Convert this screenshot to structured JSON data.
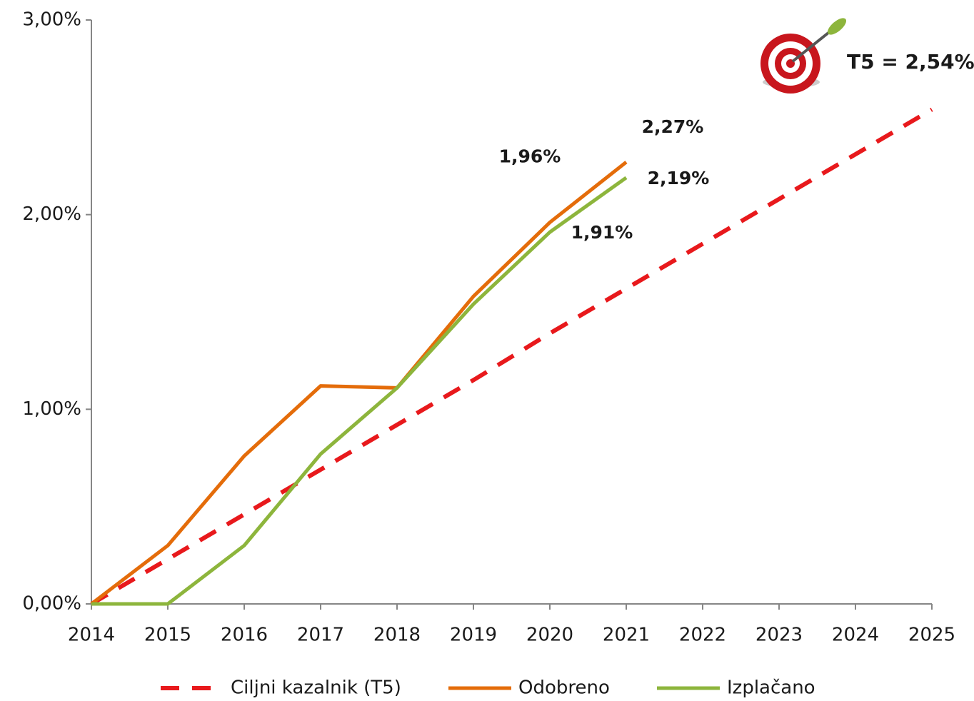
{
  "chart_data": {
    "type": "line",
    "annotation": "T5 = 2,54%",
    "x": [
      2014,
      2015,
      2016,
      2017,
      2018,
      2019,
      2020,
      2021,
      2022,
      2023,
      2024,
      2025
    ],
    "xlim": [
      2014,
      2025
    ],
    "xticks": [
      2014,
      2015,
      2016,
      2017,
      2018,
      2019,
      2020,
      2021,
      2022,
      2023,
      2024,
      2025
    ],
    "ylim": [
      0,
      3
    ],
    "yticks": [
      {
        "value": 0,
        "label": "0,00%"
      },
      {
        "value": 1,
        "label": "1,00%"
      },
      {
        "value": 2,
        "label": "2,00%"
      },
      {
        "value": 3,
        "label": "3,00%"
      }
    ],
    "legend": "bottom",
    "series": [
      {
        "name": "Ciljni kazalnik (T5)",
        "color": "#e8191c",
        "dashed": true,
        "values": [
          0,
          0.23,
          0.46,
          0.69,
          0.92,
          1.15,
          1.39,
          1.62,
          1.85,
          2.08,
          2.31,
          2.54
        ]
      },
      {
        "name": "Odobreno",
        "color": "#e46c0a",
        "dashed": false,
        "values": [
          0,
          0.3,
          0.76,
          1.12,
          1.11,
          1.58,
          1.96,
          2.27,
          null,
          null,
          null,
          null
        ],
        "value_labels": [
          null,
          null,
          null,
          null,
          null,
          null,
          "1,96%",
          "2,27%",
          null,
          null,
          null,
          null
        ],
        "value_label_colors": [
          null,
          null,
          null,
          null,
          null,
          null,
          "#000000",
          "#2e75b6",
          null,
          null,
          null,
          null
        ]
      },
      {
        "name": "Izplačano",
        "color": "#8db53c",
        "dashed": false,
        "values": [
          0,
          0,
          0.3,
          0.77,
          1.11,
          1.54,
          1.91,
          2.19,
          null,
          null,
          null,
          null
        ],
        "value_labels": [
          null,
          null,
          null,
          null,
          null,
          null,
          "1,91%",
          "2,19%",
          null,
          null,
          null,
          null
        ],
        "value_label_colors": [
          null,
          null,
          null,
          null,
          null,
          null,
          "#000000",
          "#2e75b6",
          null,
          null,
          null,
          null
        ]
      }
    ]
  }
}
